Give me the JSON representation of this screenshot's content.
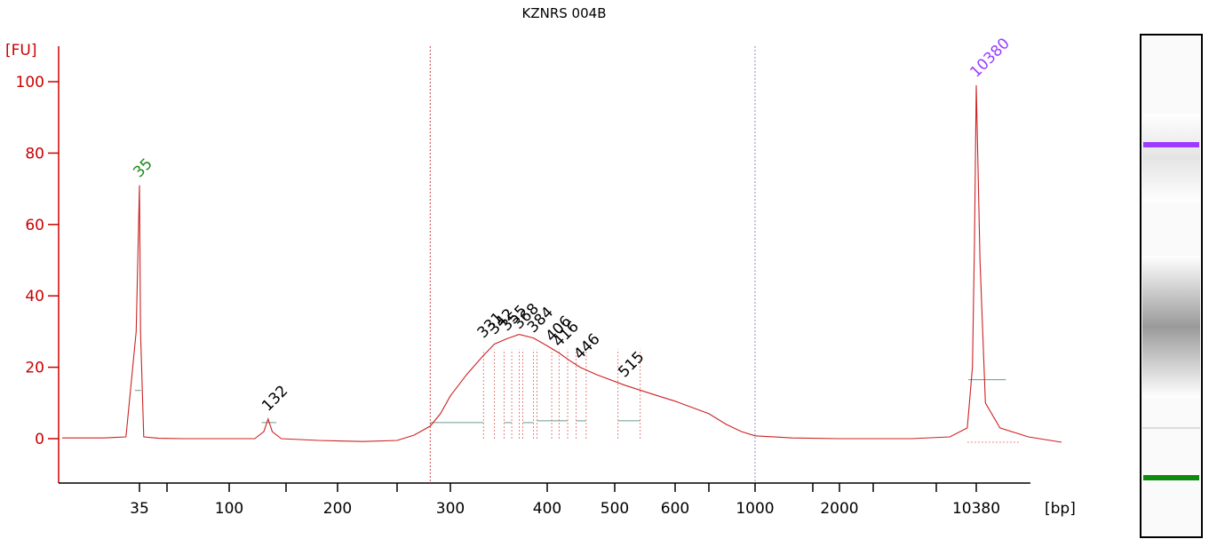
{
  "chart_data": {
    "type": "line",
    "title": "KZNRS 004B",
    "ylabel": "[FU]",
    "xlabel": "[bp]",
    "ylim": [
      -12,
      110
    ],
    "y_ticks": [
      0,
      20,
      40,
      60,
      80,
      100
    ],
    "y_tick_labels": [
      "0",
      "20",
      "40",
      "60",
      "80",
      "100"
    ],
    "x_scale": "nonlinear-ladder",
    "x_ticks": [
      35,
      50,
      100,
      150,
      200,
      250,
      300,
      400,
      500,
      600,
      700,
      1000,
      1500,
      2000,
      3000,
      7000,
      10380
    ],
    "x_tick_labels": [
      "35",
      "",
      "100",
      "",
      "200",
      "",
      "300",
      "400",
      "500",
      "600",
      "",
      "1000",
      "",
      "2000",
      "",
      "",
      "10380"
    ],
    "region_markers_bp": [
      280,
      1000
    ],
    "peaks": [
      {
        "label": "35",
        "bp": 35,
        "height": 71,
        "color": "#1a8a1a"
      },
      {
        "label": "132",
        "bp": 132,
        "height": 5.5,
        "color": "#000000"
      },
      {
        "label": "331",
        "bp": 331,
        "height": 26,
        "color": "#000000"
      },
      {
        "label": "342",
        "bp": 342,
        "height": 27,
        "color": "#000000"
      },
      {
        "label": "355",
        "bp": 355,
        "height": 28,
        "color": "#000000"
      },
      {
        "label": "368",
        "bp": 368,
        "height": 28.5,
        "color": "#000000"
      },
      {
        "label": "384",
        "bp": 384,
        "height": 27.5,
        "color": "#000000"
      },
      {
        "label": "406",
        "bp": 406,
        "height": 25,
        "color": "#000000"
      },
      {
        "label": "416",
        "bp": 416,
        "height": 23.5,
        "color": "#000000"
      },
      {
        "label": "446",
        "bp": 446,
        "height": 20,
        "color": "#000000"
      },
      {
        "label": "515",
        "bp": 515,
        "height": 15,
        "color": "#000000"
      },
      {
        "label": "10380",
        "bp": 10380,
        "height": 99,
        "color": "#9b3cff"
      }
    ],
    "series": [
      {
        "color": "#cc2222",
        "x_bp": [
          25,
          30,
          33,
          34.5,
          35,
          35.5,
          37,
          45,
          60,
          100,
          120,
          128,
          132,
          136,
          145,
          180,
          220,
          250,
          265,
          280,
          290,
          300,
          315,
          330,
          342,
          355,
          368,
          384,
          400,
          416,
          430,
          446,
          470,
          515,
          560,
          600,
          700,
          800,
          900,
          1000,
          1300,
          2000,
          3000,
          5000,
          8000,
          9500,
          10000,
          10200,
          10380,
          10550,
          10800,
          11500,
          13000,
          15000
        ],
        "y": [
          0.2,
          0.2,
          0.5,
          30,
          71,
          30,
          0.5,
          0.1,
          0,
          0,
          0,
          2,
          5.5,
          2,
          0,
          -0.5,
          -0.8,
          -0.5,
          1,
          3.5,
          7,
          12,
          18,
          23,
          26.5,
          28,
          29.2,
          28.2,
          26,
          24,
          22,
          20,
          18,
          15,
          12.5,
          10.5,
          7,
          4,
          2,
          0.8,
          0.2,
          0,
          0,
          0,
          0.5,
          3,
          20,
          55,
          99,
          50,
          10,
          3,
          0.5,
          -1
        ]
      }
    ]
  },
  "gel_lane": {
    "bands": [
      {
        "bp": 10380,
        "color": "#9b3cff",
        "label": "upper marker"
      },
      {
        "bp": 35,
        "color": "#0e8a0e",
        "label": "lower marker"
      }
    ]
  }
}
